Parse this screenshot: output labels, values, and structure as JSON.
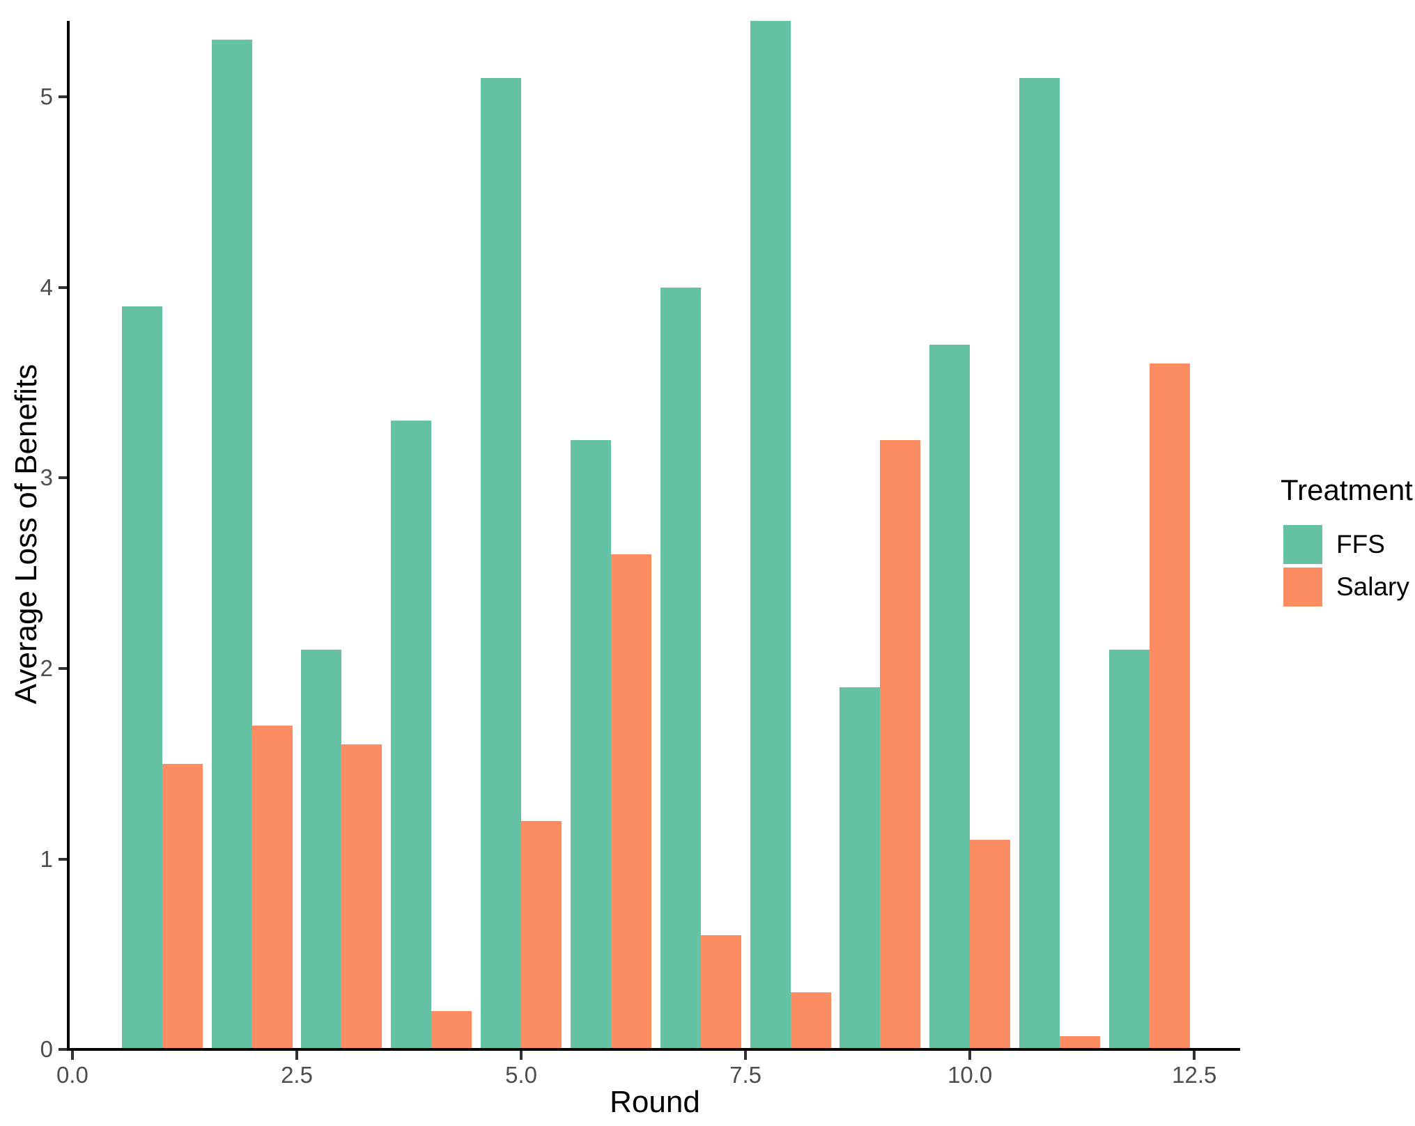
{
  "chart_data": {
    "type": "bar",
    "title": "",
    "xlabel": "Round",
    "ylabel": "Average Loss of Benefits",
    "categories": [
      1,
      2,
      3,
      4,
      5,
      6,
      7,
      8,
      9,
      10,
      11,
      12
    ],
    "series": [
      {
        "name": "FFS",
        "color": "#66C2A5",
        "values": [
          3.9,
          5.3,
          2.1,
          3.3,
          5.1,
          3.2,
          4.0,
          5.4,
          1.9,
          3.7,
          5.1,
          2.1
        ]
      },
      {
        "name": "Salary",
        "color": "#FC8D62",
        "values": [
          1.5,
          1.7,
          1.6,
          0.2,
          1.2,
          2.6,
          0.6,
          0.3,
          3.2,
          1.1,
          0.07,
          3.6
        ]
      }
    ],
    "bar_width": 0.45,
    "ylim": [
      0,
      5.4
    ],
    "xlim": [
      -0.03,
      13.01
    ],
    "x_ticks": {
      "positions": [
        0,
        2.5,
        5,
        7.5,
        10,
        12.5
      ],
      "labels": [
        "0.0",
        "2.5",
        "5.0",
        "7.5",
        "10.0",
        "12.5"
      ]
    },
    "y_ticks": {
      "positions": [
        0,
        1,
        2,
        3,
        4,
        5
      ],
      "labels": [
        "0",
        "1",
        "2",
        "3",
        "4",
        "5"
      ]
    },
    "grid": false,
    "legend": {
      "title": "Treatment",
      "position": "right",
      "entries": [
        {
          "label": "FFS",
          "color": "#66C2A5"
        },
        {
          "label": "Salary",
          "color": "#FC8D62"
        }
      ]
    },
    "colors": {
      "ffs": "#66C2A5",
      "salary": "#FC8D62",
      "axis_text": "#4D4D4D",
      "axis_line": "#000000",
      "background": "#FFFFFF"
    }
  }
}
